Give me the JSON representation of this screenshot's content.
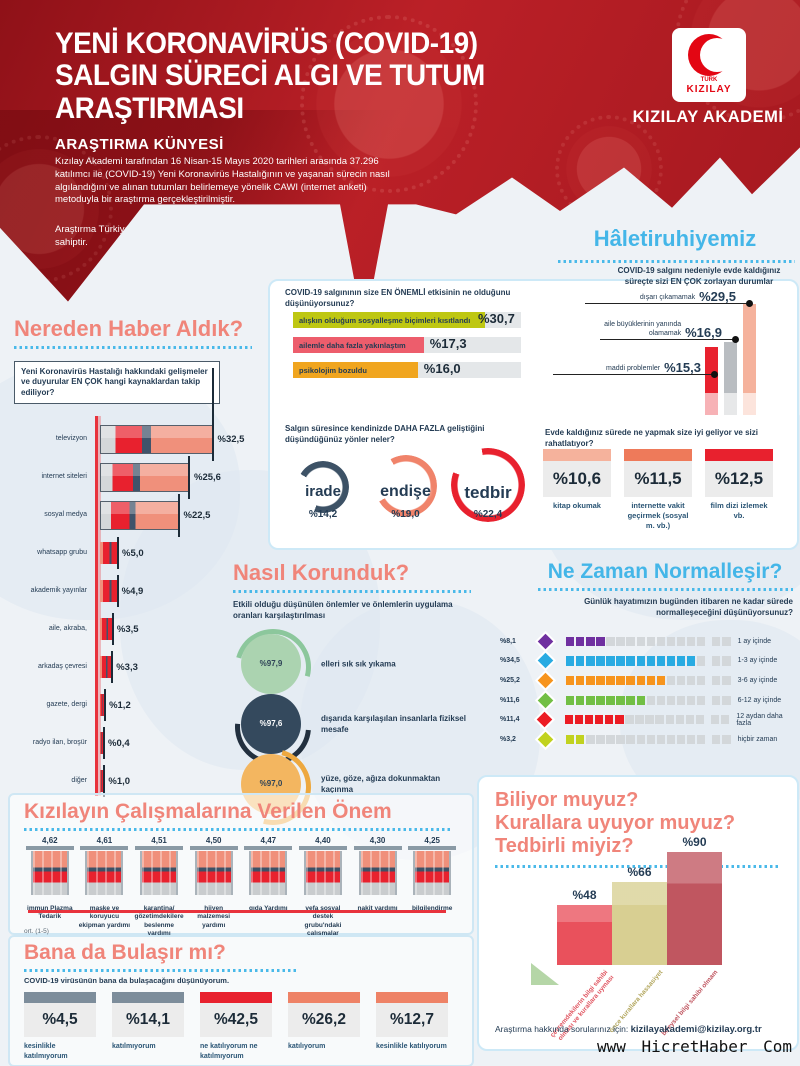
{
  "header": {
    "title_line1": "YENİ KORONAVİRÜS (COVID-19)",
    "title_line2": "SALGIN SÜRECİ ALGI VE TUTUM",
    "title_line3": "ARAŞTIRMASI",
    "subtitle": "ARAŞTIRMA KÜNYESİ",
    "body": "Kızılay Akademi tarafından 16 Nisan-15 Mayıs 2020 tarihleri arasında 37.296 katılımcı ile (COVID-19) Yeni Koronavirüs Hastalığının ve yaşanan sürecin nasıl algılandığını ve alınan tutumları belirlemeye yönelik CAWI (internet anketi) metoduyla bir araştırma gerçekleştirilmiştir.",
    "note": "Araştırma Türkiye geneli için, %99 güven aralığı ve -/+1 hata payına sahiptir.",
    "logo_top": "TÜRK",
    "logo_name": "KIZILAY",
    "brand": "KIZILAY AKADEMİ"
  },
  "sources": {
    "heading": "Nereden Haber Aldık?",
    "question": "Yeni Koronavirüs Hastalığı hakkındaki gelişmeler ve duyurular EN ÇOK hangi kaynaklardan takip ediliyor?",
    "rows": [
      {
        "label": "televizyon",
        "value": "%32,5",
        "pct": 32.5,
        "big": true
      },
      {
        "label": "internet siteleri",
        "value": "%25,6",
        "pct": 25.6,
        "big": true
      },
      {
        "label": "sosyal medya",
        "value": "%22,5",
        "pct": 22.5,
        "big": true
      },
      {
        "label": "whatsapp grubu",
        "value": "%5,0",
        "pct": 5.0,
        "big": false
      },
      {
        "label": "akademik yayınlar",
        "value": "%4,9",
        "pct": 4.9,
        "big": false
      },
      {
        "label": "aile, akraba,",
        "value": "%3,5",
        "pct": 3.5,
        "big": false
      },
      {
        "label": "arkadaş çevresi",
        "value": "%3,3",
        "pct": 3.3,
        "big": false
      },
      {
        "label": "gazete, dergi",
        "value": "%1,2",
        "pct": 1.2,
        "big": false
      },
      {
        "label": "radyo ilan, broşür",
        "value": "%0,4",
        "pct": 0.4,
        "big": false
      },
      {
        "label": "diğer",
        "value": "%1,0",
        "pct": 1.0,
        "big": false
      }
    ]
  },
  "effects": {
    "question": "COVID-19 salgınının size EN ÖNEMLİ etkisinin ne olduğunu düşünüyorsunuz?",
    "bars": [
      {
        "label": "alışkın olduğum sosyalleşme biçimleri kısıtlandı",
        "value": "%30,7",
        "pct": 30.7,
        "color": "#bec712"
      },
      {
        "label": "ailemle daha fazla yakınlaştım",
        "value": "%17,3",
        "pct": 17.3,
        "color": "#ed5d6c"
      },
      {
        "label": "psikolojim bozuldu",
        "value": "%16,0",
        "pct": 16.0,
        "color": "#f0a51f"
      }
    ],
    "question2": "Salgın süresince kendinizde DAHA FAZLA geliştiğini düşündüğünüz yönler neler?",
    "circles": [
      {
        "label": "irade",
        "value": "%14,2",
        "color": "#3d5266"
      },
      {
        "label": "endişe",
        "value": "%19,0",
        "color": "#f0836a"
      },
      {
        "label": "tedbir",
        "value": "%22,4",
        "color": "#e8212e"
      }
    ]
  },
  "mood": {
    "heading": "Hâletiruhiyemiz",
    "question": "COVID-19 salgını nedeniyle evde kaldığınız süreçte sizi EN ÇOK zorlayan durumlar",
    "bars": [
      {
        "label": "dışarı çıkamamak",
        "value": "%29,5",
        "pct": 29.5,
        "color": "#f5b29c"
      },
      {
        "label": "aile büyüklerinin yanında olamamak",
        "value": "%16,9",
        "pct": 16.9,
        "color": "#b9bdc1"
      },
      {
        "label": "maddi problemler",
        "value": "%15,3",
        "pct": 15.3,
        "color": "#e8212e"
      }
    ],
    "question2": "Evde kaldığınız sürede ne yapmak size iyi geliyor ve sizi rahatlatıyor?",
    "cards": [
      {
        "value": "%10,6",
        "label": "kitap okumak",
        "color": "#f5b29c"
      },
      {
        "value": "%11,5",
        "label": "internette vakit geçirmek (sosyal m. vb.)",
        "color": "#ee7a5a"
      },
      {
        "value": "%12,5",
        "label": "film dizi izlemek vb.",
        "color": "#e8212e"
      }
    ]
  },
  "protection": {
    "heading": "Nasıl Korunduk?",
    "subtitle": "Etkili olduğu düşünülen önlemler ve önlemlerin uygulama oranları karşılaştırılması",
    "items": [
      {
        "value": "%97,9",
        "label": "elleri sık sık yıkama",
        "fill": "#abd3b0",
        "ring": "#8cc79c",
        "text_color": "#2e4357"
      },
      {
        "value": "%97,6",
        "label": "dışarıda karşılaşılan insanlarla fiziksel mesafe",
        "fill": "#34495d",
        "ring": "#22303f",
        "text_color": "#ffffff"
      },
      {
        "value": "%97,0",
        "label": "yüze, göze, ağıza dokunmaktan kaçınma",
        "fill": "#f3b660",
        "ring": "#eda83f",
        "text_color": "#2e4357"
      }
    ]
  },
  "normalization": {
    "heading": "Ne Zaman Normalleşir?",
    "question": "Günlük hayatımızın bugünden itibaren ne kadar sürede normalleşeceğini düşünüyorsunuz?",
    "total_squares": 16,
    "rows": [
      {
        "value": "%8,1",
        "label": "1 ay içinde",
        "color": "#7030a0",
        "filled": 4
      },
      {
        "value": "%34,5",
        "label": "1-3 ay içinde",
        "color": "#29abe2",
        "filled": 13
      },
      {
        "value": "%25,2",
        "label": "3-6 ay içinde",
        "color": "#f7941d",
        "filled": 10
      },
      {
        "value": "%11,6",
        "label": "6-12 ay içinde",
        "color": "#72bf44",
        "filled": 8
      },
      {
        "value": "%11,4",
        "label": "12 aydan daha fazla",
        "color": "#ec1c24",
        "filled": 6
      },
      {
        "value": "%3,2",
        "label": "hiçbir zaman",
        "color": "#c1d21f",
        "filled": 2
      }
    ]
  },
  "importance": {
    "heading": "Kızılayın Çalışmalarına Verilen Önem",
    "scale_note": "ort. (1-5)",
    "items": [
      {
        "value": "4,62",
        "label": "immun Plazma Tedarik"
      },
      {
        "value": "4,61",
        "label": "maske ve koruyucu ekipman yardımı"
      },
      {
        "value": "4,51",
        "label": "karantina/ gözetimdekilere beslenme yardımı"
      },
      {
        "value": "4,50",
        "label": "hijyen malzemesi yardımı"
      },
      {
        "value": "4,47",
        "label": "gıda Yardımı"
      },
      {
        "value": "4,40",
        "label": "vefa sosyal destek grubu'ndaki çalışmalar"
      },
      {
        "value": "4,30",
        "label": "nakit yardımı"
      },
      {
        "value": "4,25",
        "label": "bilgilendirme"
      }
    ]
  },
  "contagion": {
    "heading": "Bana da Bulaşır mı?",
    "subtitle": "COVID-19 virüsünün bana da bulaşacağını düşünüyorum.",
    "cards": [
      {
        "value": "%4,5",
        "label": "kesinlikle katılmıyorum",
        "color": "#7d8d9b"
      },
      {
        "value": "%14,1",
        "label": "katılmıyorum",
        "color": "#7d8d9b"
      },
      {
        "value": "%42,5",
        "label": "ne katılıyorum ne katılmıyorum",
        "color": "#e8212e"
      },
      {
        "value": "%26,2",
        "label": "katılıyorum",
        "color": "#ee8266"
      },
      {
        "value": "%12,7",
        "label": "kesinlikle katılıyorum",
        "color": "#ee8266"
      }
    ]
  },
  "awareness": {
    "heading_line1": "Biliyor muyuz?",
    "heading_line2": "Kurallara uyuyor muyuz?",
    "heading_line3": "Tedbirli miyiz?",
    "bars": [
      {
        "value": "%48",
        "pct": 48,
        "label": "çevremdekilerin bilgi sahibi olması ve kurallara uyması",
        "color": "#e9515c",
        "label_color": "#e05560"
      },
      {
        "value": "%66",
        "pct": 66,
        "label": "önce kurallara hassasiyet",
        "color": "#d8cf92",
        "label_color": "#b3a75e"
      },
      {
        "value": "%90",
        "pct": 90,
        "label": "bireysel bilgi sahibi olmam",
        "color": "#c05660",
        "label_color": "#c05660"
      }
    ],
    "contact_prefix": "Araştırma hakkında sorularınız için: ",
    "contact_email": "kizilayakademi@kizilay.org.tr"
  },
  "watermark": "www HicretHaber Com",
  "chart_data": [
    {
      "type": "bar",
      "title": "Nereden Haber Aldık?",
      "categories": [
        "televizyon",
        "internet siteleri",
        "sosyal medya",
        "whatsapp grubu",
        "akademik yayınlar",
        "aile, akraba,",
        "arkadaş çevresi",
        "gazete, dergi",
        "radyo ilan, broşür",
        "diğer"
      ],
      "values": [
        32.5,
        25.6,
        22.5,
        5.0,
        4.9,
        3.5,
        3.3,
        1.2,
        0.4,
        1.0
      ],
      "unit": "%"
    },
    {
      "type": "bar",
      "title": "COVID-19 salgınının size EN ÖNEMLİ etkisi",
      "categories": [
        "alışkın olduğum sosyalleşme biçimleri kısıtlandı",
        "ailemle daha fazla yakınlaştım",
        "psikolojim bozuldu"
      ],
      "values": [
        30.7,
        17.3,
        16.0
      ],
      "unit": "%"
    },
    {
      "type": "bar",
      "title": "Salgın süresince DAHA FAZLA gelişen yönler",
      "categories": [
        "irade",
        "endişe",
        "tedbir"
      ],
      "values": [
        14.2,
        19.0,
        22.4
      ],
      "unit": "%"
    },
    {
      "type": "bar",
      "title": "Evde kaldığınız süreçte EN ÇOK zorlayan durumlar",
      "categories": [
        "dışarı çıkamamak",
        "aile büyüklerinin yanında olamamak",
        "maddi problemler"
      ],
      "values": [
        29.5,
        16.9,
        15.3
      ],
      "unit": "%"
    },
    {
      "type": "bar",
      "title": "Evde iyi gelen ve rahatlatan aktiviteler",
      "categories": [
        "kitap okumak",
        "internette vakit geçirmek (sosyal m. vb.)",
        "film dizi izlemek vb."
      ],
      "values": [
        10.6,
        11.5,
        12.5
      ],
      "unit": "%"
    },
    {
      "type": "bar",
      "title": "Nasıl Korunduk?",
      "categories": [
        "elleri sık sık yıkama",
        "dışarıda karşılaşılan insanlarla fiziksel mesafe",
        "yüze, göze, ağıza dokunmaktan kaçınma"
      ],
      "values": [
        97.9,
        97.6,
        97.0
      ],
      "unit": "%"
    },
    {
      "type": "bar",
      "title": "Ne Zaman Normalleşir?",
      "categories": [
        "1 ay içinde",
        "1-3 ay içinde",
        "3-6 ay içinde",
        "6-12 ay içinde",
        "12 aydan daha fazla",
        "hiçbir zaman"
      ],
      "values": [
        8.1,
        34.5,
        25.2,
        11.6,
        11.4,
        3.2
      ],
      "unit": "%"
    },
    {
      "type": "bar",
      "title": "Kızılayın Çalışmalarına Verilen Önem",
      "categories": [
        "immun Plazma Tedarik",
        "maske ve koruyucu ekipman yardımı",
        "karantina/ gözetimdekilere beslenme yardımı",
        "hijyen malzemesi yardımı",
        "gıda Yardımı",
        "vefa sosyal destek grubu'ndaki çalışmalar",
        "nakit yardımı",
        "bilgilendirme"
      ],
      "values": [
        4.62,
        4.61,
        4.51,
        4.5,
        4.47,
        4.4,
        4.3,
        4.25
      ],
      "ylabel": "ort. (1-5)"
    },
    {
      "type": "bar",
      "title": "Bana da Bulaşır mı?",
      "categories": [
        "kesinlikle katılmıyorum",
        "katılmıyorum",
        "ne katılıyorum ne katılmıyorum",
        "katılıyorum",
        "kesinlikle katılıyorum"
      ],
      "values": [
        4.5,
        14.1,
        42.5,
        26.2,
        12.7
      ],
      "unit": "%"
    },
    {
      "type": "bar",
      "title": "Biliyor muyuz? Kurallara uyuyor muyuz? Tedbirli miyiz?",
      "categories": [
        "çevremdekilerin bilgi sahibi olması ve kurallara uyması",
        "önce kurallara hassasiyet",
        "bireysel bilgi sahibi olmam"
      ],
      "values": [
        48,
        66,
        90
      ],
      "unit": "%"
    }
  ]
}
